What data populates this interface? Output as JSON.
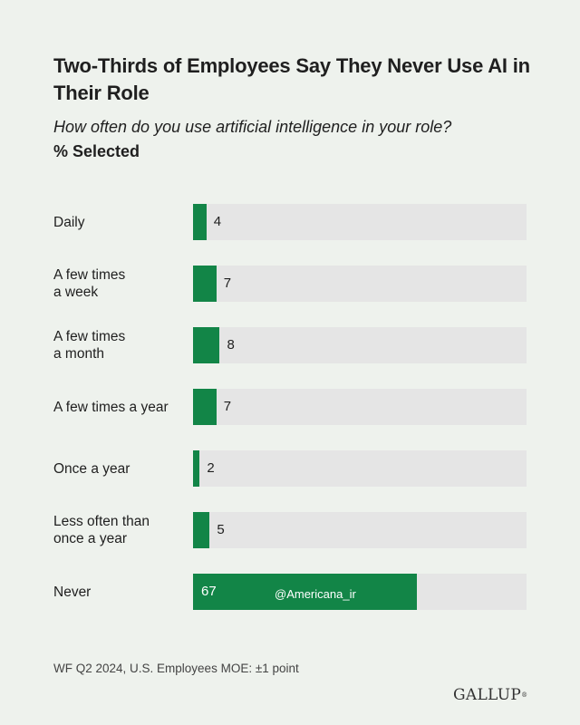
{
  "header": {
    "title": "Two-Thirds of Employees Say They Never Use AI in Their Role",
    "subtitle": "How often do you use artificial intelligence in your role?",
    "measure_label": "% Selected"
  },
  "chart_data": {
    "type": "bar",
    "orientation": "horizontal",
    "title": "Two-Thirds of Employees Say They Never Use AI in Their Role",
    "subtitle": "How often do you use artificial intelligence in your role?",
    "ylabel": "% Selected",
    "categories": [
      "Daily",
      "A few times a week",
      "A few times a month",
      "A few times a year",
      "Once a year",
      "Less often than once a year",
      "Never"
    ],
    "category_display": [
      [
        "Daily"
      ],
      [
        "A few times",
        "a week"
      ],
      [
        "A few times",
        "a month"
      ],
      [
        "A few times a year"
      ],
      [
        "Once a year"
      ],
      [
        "Less often than",
        "once a year"
      ],
      [
        "Never"
      ]
    ],
    "values": [
      4,
      7,
      8,
      7,
      2,
      5,
      67
    ],
    "xlim": [
      0,
      100
    ],
    "grid": false,
    "legend": "none"
  },
  "colors": {
    "bar": "#128547",
    "track": "#e5e5e5",
    "background": "#eef2ed"
  },
  "watermark": "@Americana_ir",
  "footnote": "WF Q2 2024, U.S. Employees MOE: ±1 point",
  "brand": "GALLUP"
}
